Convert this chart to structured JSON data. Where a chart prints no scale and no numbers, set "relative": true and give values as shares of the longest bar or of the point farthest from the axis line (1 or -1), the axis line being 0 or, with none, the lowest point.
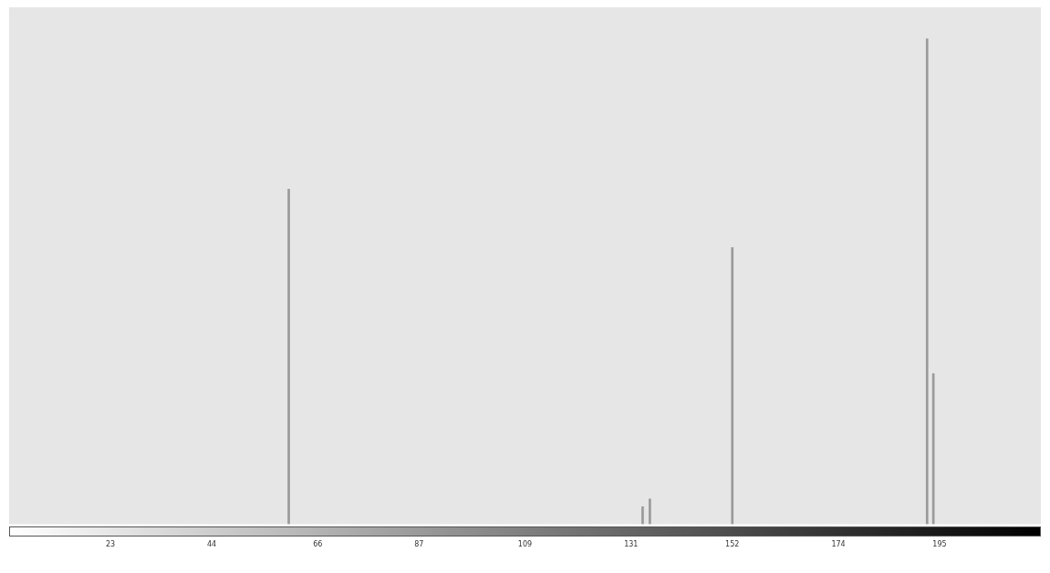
{
  "chart_data": {
    "type": "bar",
    "relative": true,
    "x": [
      60,
      133.4,
      134.9,
      152,
      192.4,
      193.7
    ],
    "values": [
      0.69,
      0.036,
      0.052,
      0.57,
      1,
      0.31
    ],
    "color": "#9a9a9a",
    "xlim": [
      2,
      216
    ],
    "xticks": [
      23,
      44,
      66,
      87,
      109,
      131,
      152,
      174,
      195
    ],
    "grid": false,
    "legend": false
  }
}
